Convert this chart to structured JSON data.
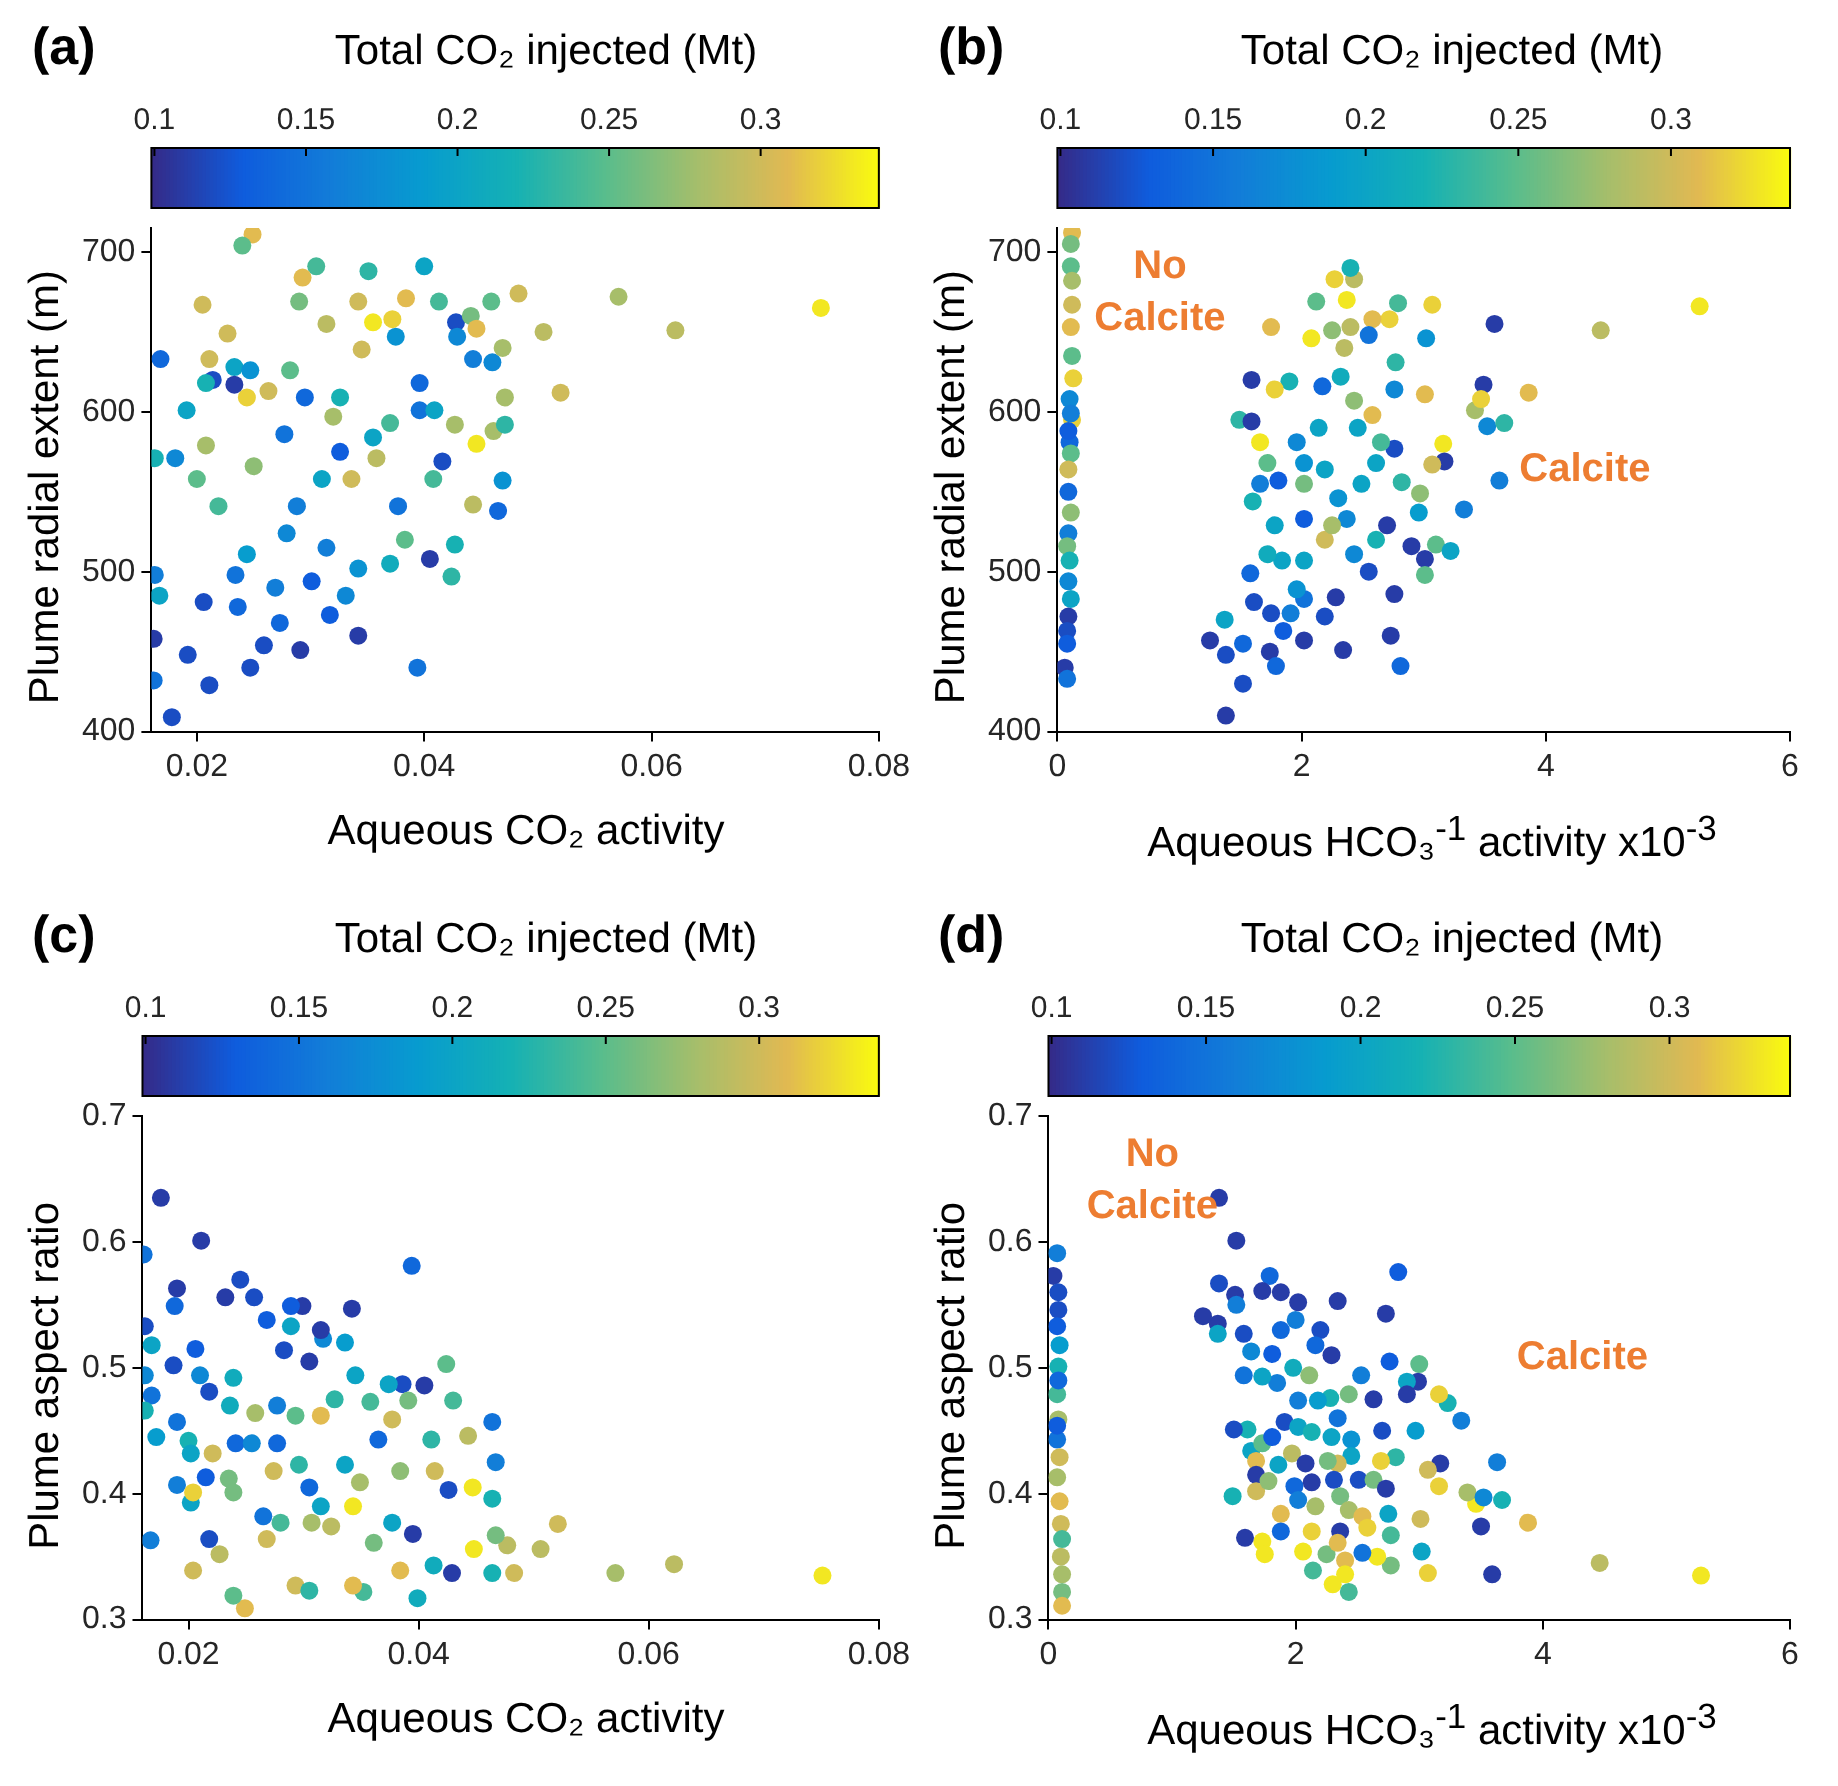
{
  "chart_data": [
    {
      "type": "scatter",
      "clabel": "Total CO₂ injected (Mt)",
      "xlabel": "Aqueous CO₂ activity",
      "ylabel": "Plume radial extent (m)",
      "annotations": [
        "(a)"
      ],
      "marker": "circle",
      "xlim": [
        0.016,
        0.08
      ],
      "xticks": [
        0.02,
        0.04,
        0.06,
        0.08
      ],
      "ylim": [
        400,
        715
      ],
      "yticks": [
        400,
        500,
        600,
        700
      ],
      "clim": [
        0.099,
        0.339
      ],
      "cticks": [
        0.1,
        0.15,
        0.2,
        0.25,
        0.3
      ],
      "x": [
        0.0749,
        0.0621,
        0.0571,
        0.052,
        0.0505,
        0.0483,
        0.0249,
        0.024,
        0.0305,
        0.04,
        0.0178,
        0.0211,
        0.0162,
        0.0394,
        0.0342,
        0.0247,
        0.0162,
        0.0291,
        0.0259,
        0.0192,
        0.0317,
        0.0236,
        0.0273,
        0.0163,
        0.0167,
        0.0206,
        0.0269,
        0.0234,
        0.0301,
        0.0314,
        0.0331,
        0.0342,
        0.037,
        0.0405,
        0.0424,
        0.0427,
        0.0383,
        0.0465,
        0.0469,
        0.0443,
        0.0244,
        0.0279,
        0.0288,
        0.031,
        0.0326,
        0.0355,
        0.037,
        0.0396,
        0.0409,
        0.032,
        0.0295,
        0.0263,
        0.0244,
        0.0233,
        0.0247,
        0.0227,
        0.0205,
        0.0211,
        0.0214,
        0.0233,
        0.0168,
        0.0181,
        0.0163,
        0.0191,
        0.0208,
        0.0208,
        0.02,
        0.0219,
        0.025,
        0.0277,
        0.0282,
        0.029,
        0.0293,
        0.0314,
        0.0326,
        0.0345,
        0.0342,
        0.0351,
        0.0355,
        0.0372,
        0.0384,
        0.0375,
        0.0396,
        0.0413,
        0.0428,
        0.0441,
        0.0459,
        0.0446,
        0.0429,
        0.0443,
        0.046,
        0.0469,
        0.0471,
        0.0461,
        0.0471,
        0.0446,
        0.0427,
        0.0416,
        0.0408,
        0.0377,
        0.0358,
        0.0336
      ],
      "values": [
        665,
        651,
        672,
        612,
        650,
        674,
        711,
        704,
        691,
        691,
        409,
        429,
        432,
        440,
        460,
        440,
        458,
        451,
        454,
        448,
        473,
        478,
        468,
        498,
        485,
        481,
        490,
        498,
        494,
        515,
        485,
        502,
        505,
        508,
        497,
        517,
        520,
        538,
        557,
        542,
        511,
        524,
        541,
        558,
        575,
        584,
        593,
        601,
        601,
        597,
        609,
        613,
        609,
        628,
        626,
        649,
        667,
        633,
        620,
        617,
        633,
        571,
        571,
        601,
        618,
        579,
        558,
        541,
        566,
        586,
        626,
        669,
        684,
        655,
        609,
        639,
        669,
        688,
        656,
        658,
        671,
        647,
        618,
        669,
        656,
        660,
        669,
        652,
        647,
        633,
        631,
        640,
        609,
        588,
        592,
        580,
        592,
        569,
        558,
        541,
        571,
        558
      ],
      "cvalues": [
        0.33,
        0.29,
        0.28,
        0.3,
        0.29,
        0.3,
        0.31,
        0.25,
        0.24,
        0.2,
        0.12,
        0.12,
        0.15,
        0.15,
        0.11,
        0.12,
        0.11,
        0.11,
        0.12,
        0.12,
        0.13,
        0.14,
        0.14,
        0.16,
        0.2,
        0.12,
        0.16,
        0.15,
        0.13,
        0.16,
        0.17,
        0.18,
        0.21,
        0.11,
        0.23,
        0.22,
        0.25,
        0.14,
        0.18,
        0.29,
        0.19,
        0.17,
        0.16,
        0.2,
        0.13,
        0.2,
        0.24,
        0.15,
        0.2,
        0.28,
        0.14,
        0.3,
        0.32,
        0.2,
        0.18,
        0.3,
        0.3,
        0.3,
        0.12,
        0.11,
        0.14,
        0.17,
        0.22,
        0.2,
        0.22,
        0.28,
        0.25,
        0.24,
        0.27,
        0.15,
        0.25,
        0.26,
        0.31,
        0.29,
        0.22,
        0.3,
        0.3,
        0.23,
        0.33,
        0.32,
        0.31,
        0.18,
        0.14,
        0.24,
        0.12,
        0.26,
        0.25,
        0.31,
        0.17,
        0.16,
        0.17,
        0.28,
        0.28,
        0.28,
        0.23,
        0.33,
        0.28,
        0.12,
        0.24,
        0.15,
        0.29,
        0.3
      ]
    },
    {
      "type": "scatter",
      "clabel": "Total CO₂ injected (Mt)",
      "xlabel": "Aqueous HCO₃$^{-1}$ activity x10$^{-3}$",
      "ylabel": "Plume radial extent (m)",
      "annotations": [
        "(b)",
        "No Calcite",
        "Calcite"
      ],
      "marker": "circle",
      "xlim": [
        0,
        6
      ],
      "xticks": [
        0,
        2,
        4,
        6
      ],
      "ylim": [
        400,
        715
      ],
      "yticks": [
        400,
        500,
        600,
        700
      ],
      "clim": [
        0.099,
        0.339
      ],
      "cticks": [
        0.1,
        0.15,
        0.2,
        0.25,
        0.3
      ],
      "x": [
        0.12,
        0.11,
        0.11,
        0.12,
        0.12,
        0.11,
        0.12,
        0.13,
        0.1,
        0.12,
        0.1,
        0.11,
        0.09,
        0.09,
        0.11,
        0.09,
        0.08,
        0.1,
        0.09,
        0.11,
        0.09,
        0.08,
        0.08,
        0.06,
        0.08,
        0.11,
        0.09,
        5.26,
        4.45,
        3.86,
        3.58,
        3.49,
        3.42,
        3.47,
        3.52,
        3.66,
        3.62,
        3.33,
        3.16,
        3.17,
        3.07,
        3.01,
        3.02,
        3.07,
        3.1,
        3.22,
        3.01,
        2.9,
        3.01,
        2.97,
        2.96,
        2.82,
        2.76,
        2.76,
        2.77,
        2.79,
        2.72,
        2.58,
        2.55,
        2.4,
        2.43,
        2.4,
        2.27,
        2.37,
        2.25,
        2.12,
        2.08,
        1.75,
        2.35,
        2.32,
        2.17,
        1.59,
        1.9,
        1.78,
        1.49,
        1.59,
        1.66,
        1.72,
        1.96,
        2.02,
        2.14,
        2.43,
        2.46,
        2.58,
        2.65,
        2.61,
        2.49,
        2.37,
        2.3,
        2.19,
        2.02,
        1.81,
        1.66,
        1.6,
        1.78,
        2.02,
        2.19,
        2.25,
        2.43,
        2.61,
        2.7,
        2.55,
        2.28,
        2.19,
        2.02,
        1.96,
        2.02,
        1.84,
        1.72,
        1.58,
        1.61,
        1.75,
        1.91,
        2.02,
        1.85,
        1.74,
        1.79,
        1.52,
        1.37,
        1.38,
        1.25,
        1.52,
        1.38,
        2.34,
        2.73,
        2.76,
        2.81
      ],
      "values": [
        712,
        705,
        691,
        682,
        667,
        653,
        635,
        621,
        608,
        595,
        581,
        574,
        564,
        550,
        537,
        524,
        516,
        507,
        494,
        483,
        472,
        463,
        455,
        440,
        433,
        599,
        588,
        666,
        651,
        612,
        655,
        617,
        601,
        608,
        591,
        593,
        557,
        539,
        580,
        569,
        567,
        611,
        646,
        667,
        517,
        513,
        508,
        516,
        498,
        549,
        537,
        556,
        577,
        614,
        631,
        668,
        658,
        658,
        648,
        653,
        683,
        690,
        683,
        670,
        651,
        669,
        646,
        653,
        640,
        622,
        616,
        620,
        619,
        614,
        595,
        594,
        581,
        568,
        581,
        568,
        590,
        607,
        590,
        598,
        581,
        568,
        555,
        533,
        546,
        564,
        555,
        557,
        555,
        544,
        529,
        533,
        520,
        529,
        511,
        520,
        529,
        500,
        484,
        472,
        483,
        489,
        507,
        507,
        511,
        499,
        481,
        474,
        474,
        457,
        463,
        450,
        441,
        455,
        470,
        448,
        457,
        430,
        410,
        451,
        460,
        486,
        441
      ],
      "cvalues": [
        0.31,
        0.26,
        0.25,
        0.28,
        0.3,
        0.31,
        0.25,
        0.32,
        0.17,
        0.32,
        0.14,
        0.25,
        0.3,
        0.14,
        0.27,
        0.16,
        0.26,
        0.22,
        0.17,
        0.2,
        0.11,
        0.12,
        0.13,
        0.11,
        0.15,
        0.16,
        0.13,
        0.33,
        0.29,
        0.31,
        0.11,
        0.11,
        0.28,
        0.32,
        0.17,
        0.23,
        0.16,
        0.16,
        0.33,
        0.11,
        0.3,
        0.31,
        0.18,
        0.32,
        0.25,
        0.2,
        0.11,
        0.11,
        0.25,
        0.27,
        0.19,
        0.23,
        0.12,
        0.17,
        0.23,
        0.24,
        0.32,
        0.31,
        0.15,
        0.29,
        0.29,
        0.22,
        0.32,
        0.33,
        0.27,
        0.25,
        0.33,
        0.31,
        0.29,
        0.21,
        0.14,
        0.11,
        0.22,
        0.32,
        0.23,
        0.11,
        0.33,
        0.25,
        0.17,
        0.18,
        0.2,
        0.27,
        0.2,
        0.31,
        0.24,
        0.2,
        0.2,
        0.17,
        0.18,
        0.2,
        0.26,
        0.13,
        0.16,
        0.22,
        0.2,
        0.13,
        0.3,
        0.28,
        0.17,
        0.22,
        0.11,
        0.12,
        0.11,
        0.12,
        0.15,
        0.18,
        0.2,
        0.2,
        0.21,
        0.14,
        0.12,
        0.12,
        0.16,
        0.11,
        0.13,
        0.11,
        0.14,
        0.14,
        0.2,
        0.12,
        0.11,
        0.12,
        0.11,
        0.11,
        0.11,
        0.11,
        0.14
      ]
    },
    {
      "type": "scatter",
      "clabel": "Total CO₂ injected (Mt)",
      "xlabel": "Aqueous CO₂ activity",
      "ylabel": "Plume aspect ratio",
      "annotations": [
        "(c)"
      ],
      "marker": "circle",
      "xlim": [
        0.016,
        0.08
      ],
      "xticks": [
        0.02,
        0.04,
        0.06,
        0.08
      ],
      "ylim": [
        0.3,
        0.7
      ],
      "yticks": [
        0.3,
        0.4,
        0.5,
        0.6,
        0.7
      ],
      "clim": [
        0.099,
        0.339
      ],
      "cticks": [
        0.1,
        0.15,
        0.2,
        0.25,
        0.3
      ],
      "x": [
        0.0751,
        0.0622,
        0.0571,
        0.0521,
        0.0506,
        0.0483,
        0.0176,
        0.0211,
        0.0161,
        0.0394,
        0.0249,
        0.0239,
        0.0167,
        0.0399,
        0.0429,
        0.0204,
        0.0227,
        0.0218,
        0.0268,
        0.0293,
        0.0305,
        0.0352,
        0.0343,
        0.0384,
        0.0413,
        0.0464,
        0.0448,
        0.0477,
        0.0467,
        0.0464,
        0.0447,
        0.0443,
        0.0464,
        0.0467,
        0.0424,
        0.043,
        0.0405,
        0.0386,
        0.0374,
        0.0391,
        0.0411,
        0.0414,
        0.0426,
        0.0395,
        0.0377,
        0.0361,
        0.0343,
        0.0336,
        0.0349,
        0.0345,
        0.0342,
        0.0336,
        0.0317,
        0.0315,
        0.0299,
        0.0289,
        0.0289,
        0.0283,
        0.0305,
        0.0268,
        0.0257,
        0.0245,
        0.0232,
        0.019,
        0.0188,
        0.0162,
        0.0168,
        0.0206,
        0.0187,
        0.0162,
        0.021,
        0.0168,
        0.0162,
        0.0172,
        0.019,
        0.02,
        0.0202,
        0.019,
        0.0202,
        0.0204,
        0.0218,
        0.0221,
        0.0215,
        0.0235,
        0.0239,
        0.0241,
        0.0236,
        0.0239,
        0.0258,
        0.0255,
        0.0277,
        0.0274,
        0.0296,
        0.0305,
        0.0315,
        0.0324,
        0.0307,
        0.028,
        0.0265,
        0.0277,
        0.0293,
        0.0315,
        0.0327,
        0.0358,
        0.0365,
        0.0377,
        0.0384
      ],
      "values": [
        0.335,
        0.344,
        0.337,
        0.376,
        0.356,
        0.337,
        0.635,
        0.601,
        0.59,
        0.581,
        0.309,
        0.319,
        0.363,
        0.317,
        0.337,
        0.339,
        0.352,
        0.364,
        0.364,
        0.327,
        0.323,
        0.322,
        0.327,
        0.339,
        0.343,
        0.337,
        0.356,
        0.359,
        0.367,
        0.396,
        0.405,
        0.446,
        0.457,
        0.425,
        0.503,
        0.474,
        0.486,
        0.487,
        0.487,
        0.474,
        0.443,
        0.418,
        0.403,
        0.368,
        0.377,
        0.361,
        0.39,
        0.423,
        0.409,
        0.494,
        0.547,
        0.52,
        0.523,
        0.53,
        0.549,
        0.549,
        0.533,
        0.514,
        0.505,
        0.538,
        0.556,
        0.57,
        0.556,
        0.563,
        0.549,
        0.533,
        0.518,
        0.515,
        0.502,
        0.494,
        0.494,
        0.478,
        0.466,
        0.445,
        0.457,
        0.442,
        0.432,
        0.407,
        0.393,
        0.401,
        0.481,
        0.432,
        0.413,
        0.412,
        0.401,
        0.44,
        0.47,
        0.492,
        0.464,
        0.44,
        0.44,
        0.418,
        0.423,
        0.405,
        0.39,
        0.374,
        0.377,
        0.377,
        0.382,
        0.47,
        0.462,
        0.462,
        0.475,
        0.473,
        0.443,
        0.459,
        0.418
      ],
      "cvalues": [
        0.33,
        0.29,
        0.28,
        0.3,
        0.29,
        0.3,
        0.11,
        0.11,
        0.15,
        0.14,
        0.31,
        0.25,
        0.16,
        0.21,
        0.11,
        0.3,
        0.29,
        0.12,
        0.3,
        0.3,
        0.23,
        0.24,
        0.31,
        0.31,
        0.21,
        0.22,
        0.33,
        0.29,
        0.26,
        0.22,
        0.33,
        0.29,
        0.15,
        0.16,
        0.25,
        0.24,
        0.11,
        0.12,
        0.2,
        0.26,
        0.23,
        0.3,
        0.12,
        0.11,
        0.2,
        0.26,
        0.33,
        0.2,
        0.28,
        0.2,
        0.11,
        0.19,
        0.17,
        0.11,
        0.11,
        0.13,
        0.2,
        0.12,
        0.11,
        0.13,
        0.12,
        0.12,
        0.11,
        0.11,
        0.14,
        0.12,
        0.2,
        0.13,
        0.12,
        0.17,
        0.17,
        0.15,
        0.22,
        0.19,
        0.15,
        0.22,
        0.2,
        0.16,
        0.2,
        0.32,
        0.12,
        0.3,
        0.13,
        0.26,
        0.26,
        0.14,
        0.21,
        0.21,
        0.28,
        0.17,
        0.14,
        0.3,
        0.23,
        0.14,
        0.2,
        0.29,
        0.28,
        0.24,
        0.15,
        0.16,
        0.25,
        0.31,
        0.23,
        0.24,
        0.14,
        0.3,
        0.27
      ]
    },
    {
      "type": "scatter",
      "clabel": "Total CO₂ injected (Mt)",
      "xlabel": "Aqueous HCO₃$^{-1}$ activity x10$^{-3}$",
      "ylabel": "Plume aspect ratio",
      "annotations": [
        "(d)",
        "No Calcite",
        "Calcite"
      ],
      "marker": "circle",
      "xlim": [
        0,
        6
      ],
      "xticks": [
        0,
        2,
        4,
        6
      ],
      "ylim": [
        0.3,
        0.7
      ],
      "yticks": [
        0.3,
        0.4,
        0.5,
        0.6,
        0.7
      ],
      "clim": [
        0.099,
        0.339
      ],
      "cticks": [
        0.1,
        0.15,
        0.2,
        0.25,
        0.3
      ],
      "x": [
        0.07,
        0.04,
        0.08,
        0.08,
        0.07,
        0.09,
        0.08,
        0.07,
        0.08,
        0.07,
        0.09,
        0.07,
        0.09,
        0.1,
        0.11,
        0.1,
        0.11,
        0.11,
        0.11,
        0.07,
        0.08,
        5.28,
        4.46,
        3.88,
        3.59,
        3.5,
        3.46,
        3.39,
        3.52,
        3.67,
        3.63,
        3.34,
        3.23,
        3.16,
        3.17,
        3.07,
        3.16,
        3.01,
        3.02,
        3.07,
        2.97,
        3.0,
        2.99,
        2.9,
        2.9,
        2.83,
        2.73,
        2.76,
        2.7,
        2.81,
        2.75,
        2.77,
        2.77,
        2.66,
        2.54,
        2.34,
        2.2,
        2.29,
        2.16,
        2.02,
        2.0,
        1.88,
        1.79,
        1.73,
        1.51,
        1.52,
        1.38,
        1.37,
        1.25,
        1.37,
        1.38,
        1.52,
        1.58,
        1.64,
        1.81,
        1.88,
        1.98,
        2.11,
        2.28,
        2.43,
        2.53,
        2.63,
        2.34,
        2.18,
        2.02,
        1.85,
        1.73,
        1.58,
        1.61,
        1.5,
        1.64,
        1.73,
        1.81,
        1.91,
        2.02,
        2.13,
        2.29,
        2.45,
        2.45,
        2.34,
        2.26,
        1.97,
        2.08,
        1.86,
        1.68,
        1.68,
        1.68,
        1.49,
        1.78,
        1.99,
        2.13,
        2.31,
        2.51,
        2.63,
        2.73,
        2.69,
        2.02,
        2.16,
        2.36,
        2.43,
        2.54,
        2.58,
        2.36,
        1.88,
        1.88,
        1.73,
        1.59,
        1.75,
        2.06,
        2.13,
        2.25,
        2.34,
        2.4,
        2.3,
        2.14,
        2.43,
        2.4
      ],
      "values": [
        0.591,
        0.573,
        0.56,
        0.546,
        0.533,
        0.518,
        0.501,
        0.479,
        0.459,
        0.443,
        0.429,
        0.413,
        0.394,
        0.376,
        0.364,
        0.35,
        0.336,
        0.322,
        0.311,
        0.454,
        0.49,
        0.335,
        0.345,
        0.377,
        0.336,
        0.374,
        0.392,
        0.401,
        0.397,
        0.395,
        0.425,
        0.458,
        0.472,
        0.479,
        0.424,
        0.419,
        0.406,
        0.38,
        0.354,
        0.337,
        0.45,
        0.503,
        0.489,
        0.489,
        0.479,
        0.576,
        0.543,
        0.505,
        0.45,
        0.429,
        0.384,
        0.367,
        0.343,
        0.35,
        0.353,
        0.553,
        0.53,
        0.51,
        0.518,
        0.552,
        0.538,
        0.56,
        0.573,
        0.561,
        0.558,
        0.55,
        0.567,
        0.535,
        0.541,
        0.527,
        0.635,
        0.601,
        0.527,
        0.513,
        0.511,
        0.53,
        0.5,
        0.494,
        0.476,
        0.479,
        0.494,
        0.475,
        0.46,
        0.474,
        0.474,
        0.488,
        0.493,
        0.494,
        0.451,
        0.451,
        0.434,
        0.44,
        0.445,
        0.457,
        0.453,
        0.449,
        0.445,
        0.443,
        0.43,
        0.424,
        0.426,
        0.432,
        0.424,
        0.423,
        0.426,
        0.415,
        0.402,
        0.398,
        0.41,
        0.406,
        0.409,
        0.411,
        0.411,
        0.411,
        0.404,
        0.426,
        0.395,
        0.39,
        0.398,
        0.387,
        0.382,
        0.373,
        0.37,
        0.384,
        0.37,
        0.362,
        0.365,
        0.352,
        0.354,
        0.37,
        0.352,
        0.361,
        0.347,
        0.328,
        0.339,
        0.322,
        0.336
      ],
      "cvalues": [
        0.16,
        0.11,
        0.12,
        0.12,
        0.13,
        0.19,
        0.22,
        0.24,
        0.28,
        0.15,
        0.3,
        0.28,
        0.31,
        0.3,
        0.24,
        0.29,
        0.28,
        0.26,
        0.31,
        0.13,
        0.14,
        0.33,
        0.29,
        0.31,
        0.11,
        0.11,
        0.33,
        0.28,
        0.17,
        0.22,
        0.16,
        0.16,
        0.22,
        0.32,
        0.11,
        0.3,
        0.32,
        0.3,
        0.2,
        0.32,
        0.19,
        0.25,
        0.11,
        0.2,
        0.11,
        0.13,
        0.11,
        0.13,
        0.12,
        0.23,
        0.2,
        0.24,
        0.26,
        0.33,
        0.15,
        0.11,
        0.12,
        0.11,
        0.14,
        0.11,
        0.16,
        0.11,
        0.14,
        0.11,
        0.11,
        0.16,
        0.12,
        0.11,
        0.11,
        0.2,
        0.11,
        0.11,
        0.12,
        0.17,
        0.13,
        0.14,
        0.21,
        0.27,
        0.22,
        0.26,
        0.16,
        0.11,
        0.15,
        0.19,
        0.16,
        0.16,
        0.2,
        0.15,
        0.22,
        0.12,
        0.2,
        0.25,
        0.13,
        0.12,
        0.2,
        0.22,
        0.2,
        0.18,
        0.2,
        0.3,
        0.26,
        0.29,
        0.11,
        0.2,
        0.31,
        0.11,
        0.3,
        0.22,
        0.27,
        0.14,
        0.11,
        0.12,
        0.12,
        0.26,
        0.11,
        0.32,
        0.16,
        0.28,
        0.26,
        0.28,
        0.31,
        0.32,
        0.11,
        0.31,
        0.14,
        0.33,
        0.11,
        0.33,
        0.33,
        0.32,
        0.26,
        0.31,
        0.31,
        0.33,
        0.24,
        0.24,
        0.33
      ]
    }
  ]
}
